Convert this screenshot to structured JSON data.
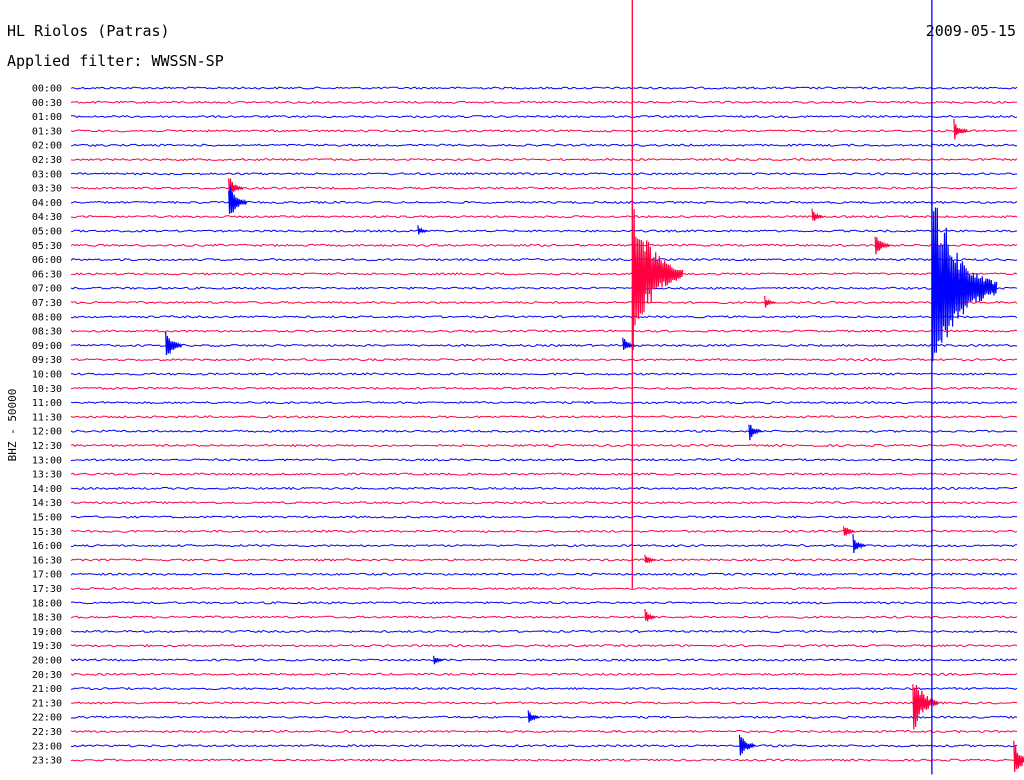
{
  "header": {
    "station": "HL Riolos (Patras)",
    "date": "2009-05-15",
    "filter": "Applied filter: WWSSN-SP"
  },
  "chart_data": {
    "type": "line",
    "title": "HL Riolos (Patras)",
    "subtitle": "Applied filter: WWSSN-SP",
    "date": "2009-05-15",
    "ylabel": "BHZ - 50000",
    "row_labels": [
      "00:00",
      "00:30",
      "01:00",
      "01:30",
      "02:00",
      "02:30",
      "03:00",
      "03:30",
      "04:00",
      "04:30",
      "05:00",
      "05:30",
      "06:00",
      "06:30",
      "07:00",
      "07:30",
      "08:00",
      "08:30",
      "09:00",
      "09:30",
      "10:00",
      "10:30",
      "11:00",
      "11:30",
      "12:00",
      "12:30",
      "13:00",
      "13:30",
      "14:00",
      "14:30",
      "15:00",
      "15:30",
      "16:00",
      "16:30",
      "17:00",
      "17:30",
      "18:00",
      "18:30",
      "19:00",
      "19:30",
      "20:00",
      "20:30",
      "21:00",
      "21:30",
      "22:00",
      "22:30",
      "23:00",
      "23:30"
    ],
    "trace_colors": [
      "#0000ff",
      "#ff0040"
    ],
    "minutes_per_row": 30,
    "events": [
      {
        "row": "01:30",
        "minute": 28,
        "amp": 0.9
      },
      {
        "row": "03:30",
        "minute": 5,
        "amp": 1.0
      },
      {
        "row": "04:00",
        "minute": 5,
        "amp": 1.5
      },
      {
        "row": "05:00",
        "minute": 11,
        "amp": 0.4
      },
      {
        "row": "04:30",
        "minute": 23.5,
        "amp": 0.6
      },
      {
        "row": "05:30",
        "minute": 25.5,
        "amp": 1.0
      },
      {
        "row": "06:30",
        "minute": 17.8,
        "amp": 6.0
      },
      {
        "row": "07:00",
        "minute": 27.3,
        "amp": 8.0
      },
      {
        "row": "07:30",
        "minute": 22,
        "amp": 0.5
      },
      {
        "row": "09:00",
        "minute": 3,
        "amp": 1.3
      },
      {
        "row": "09:00",
        "minute": 17.5,
        "amp": 0.7
      },
      {
        "row": "12:00",
        "minute": 21.5,
        "amp": 0.8
      },
      {
        "row": "15:30",
        "minute": 24.5,
        "amp": 0.6
      },
      {
        "row": "16:00",
        "minute": 24.8,
        "amp": 0.8
      },
      {
        "row": "16:30",
        "minute": 18.2,
        "amp": 0.5
      },
      {
        "row": "18:30",
        "minute": 18.2,
        "amp": 0.6
      },
      {
        "row": "20:00",
        "minute": 11.5,
        "amp": 0.4
      },
      {
        "row": "21:30",
        "minute": 26.7,
        "amp": 2.5
      },
      {
        "row": "22:00",
        "minute": 14.5,
        "amp": 0.6
      },
      {
        "row": "23:00",
        "minute": 21.2,
        "amp": 1.2
      },
      {
        "row": "23:30",
        "minute": 29.9,
        "amp": 1.5
      }
    ]
  }
}
